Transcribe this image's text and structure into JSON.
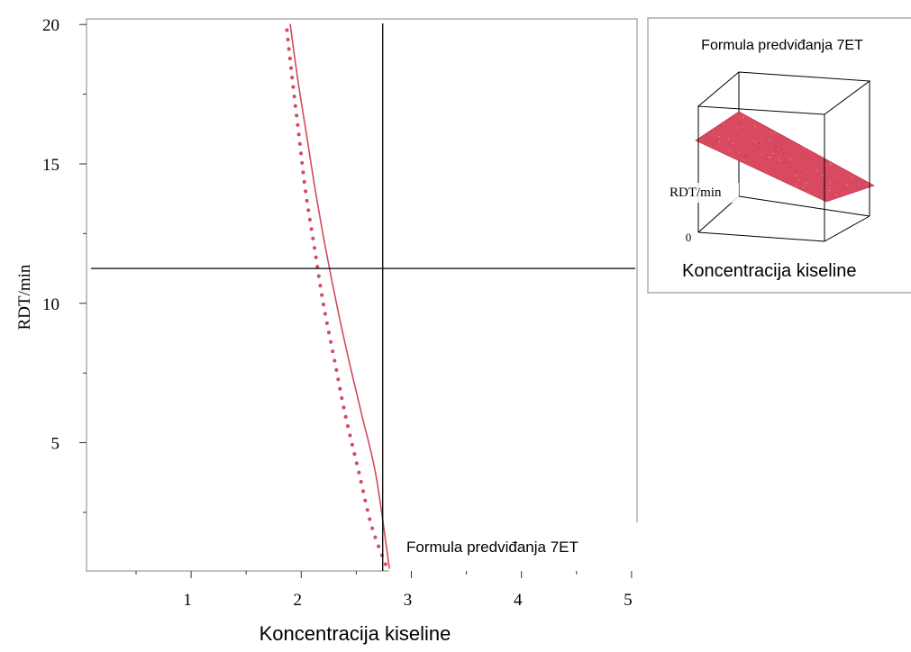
{
  "colors": {
    "series": "#d24a5e",
    "frame": "#999999",
    "axis": "#333333",
    "crosshair": "#000000",
    "inset_surface": "#d84a5f"
  },
  "main_chart": {
    "ylabel": "RDT/min",
    "xlabel": "Koncentracija kiseline",
    "legend_label": "Formula predviđanja 7ET",
    "x_ticks": [
      "1",
      "2",
      "3",
      "4",
      "5"
    ],
    "y_ticks": [
      "5",
      "10",
      "15",
      "20"
    ]
  },
  "inset": {
    "title": "Formula predviđanja 7ET",
    "zlabel": "RDT/min",
    "zero_label": "0",
    "xlabel": "Koncentracija kiseline"
  },
  "chart_data": [
    {
      "type": "line",
      "xlabel": "Koncentracija kiseline",
      "ylabel": "RDT/min",
      "xlim": [
        0.05,
        5.05
      ],
      "ylim": [
        0.4,
        20.2
      ],
      "x_ticks": [
        1,
        2,
        3,
        4,
        5
      ],
      "y_ticks": [
        5,
        10,
        15,
        20
      ],
      "series": [
        {
          "name": "Formula predviđanja 7ET",
          "style": "solid",
          "x": [
            1.9,
            1.97,
            2.05,
            2.13,
            2.22,
            2.32,
            2.43,
            2.55,
            2.68,
            2.8
          ],
          "y": [
            20.0,
            18.0,
            16.0,
            14.0,
            12.0,
            10.0,
            8.0,
            6.0,
            3.8,
            0.5
          ]
        },
        {
          "style": "dotted",
          "x": [
            1.87,
            1.92,
            1.98,
            2.04,
            2.12,
            2.2,
            2.3,
            2.4,
            2.52,
            2.64,
            2.77
          ],
          "y": [
            19.8,
            18.0,
            16.0,
            14.0,
            12.0,
            10.0,
            8.0,
            6.0,
            4.0,
            2.0,
            0.6
          ]
        }
      ],
      "crosshair": {
        "x": 2.74,
        "y": 11.25
      }
    },
    {
      "type": "surface",
      "title": "Formula predviđanja 7ET",
      "xlabel": "Koncentracija kiseline",
      "zlabel": "RDT/min"
    }
  ]
}
